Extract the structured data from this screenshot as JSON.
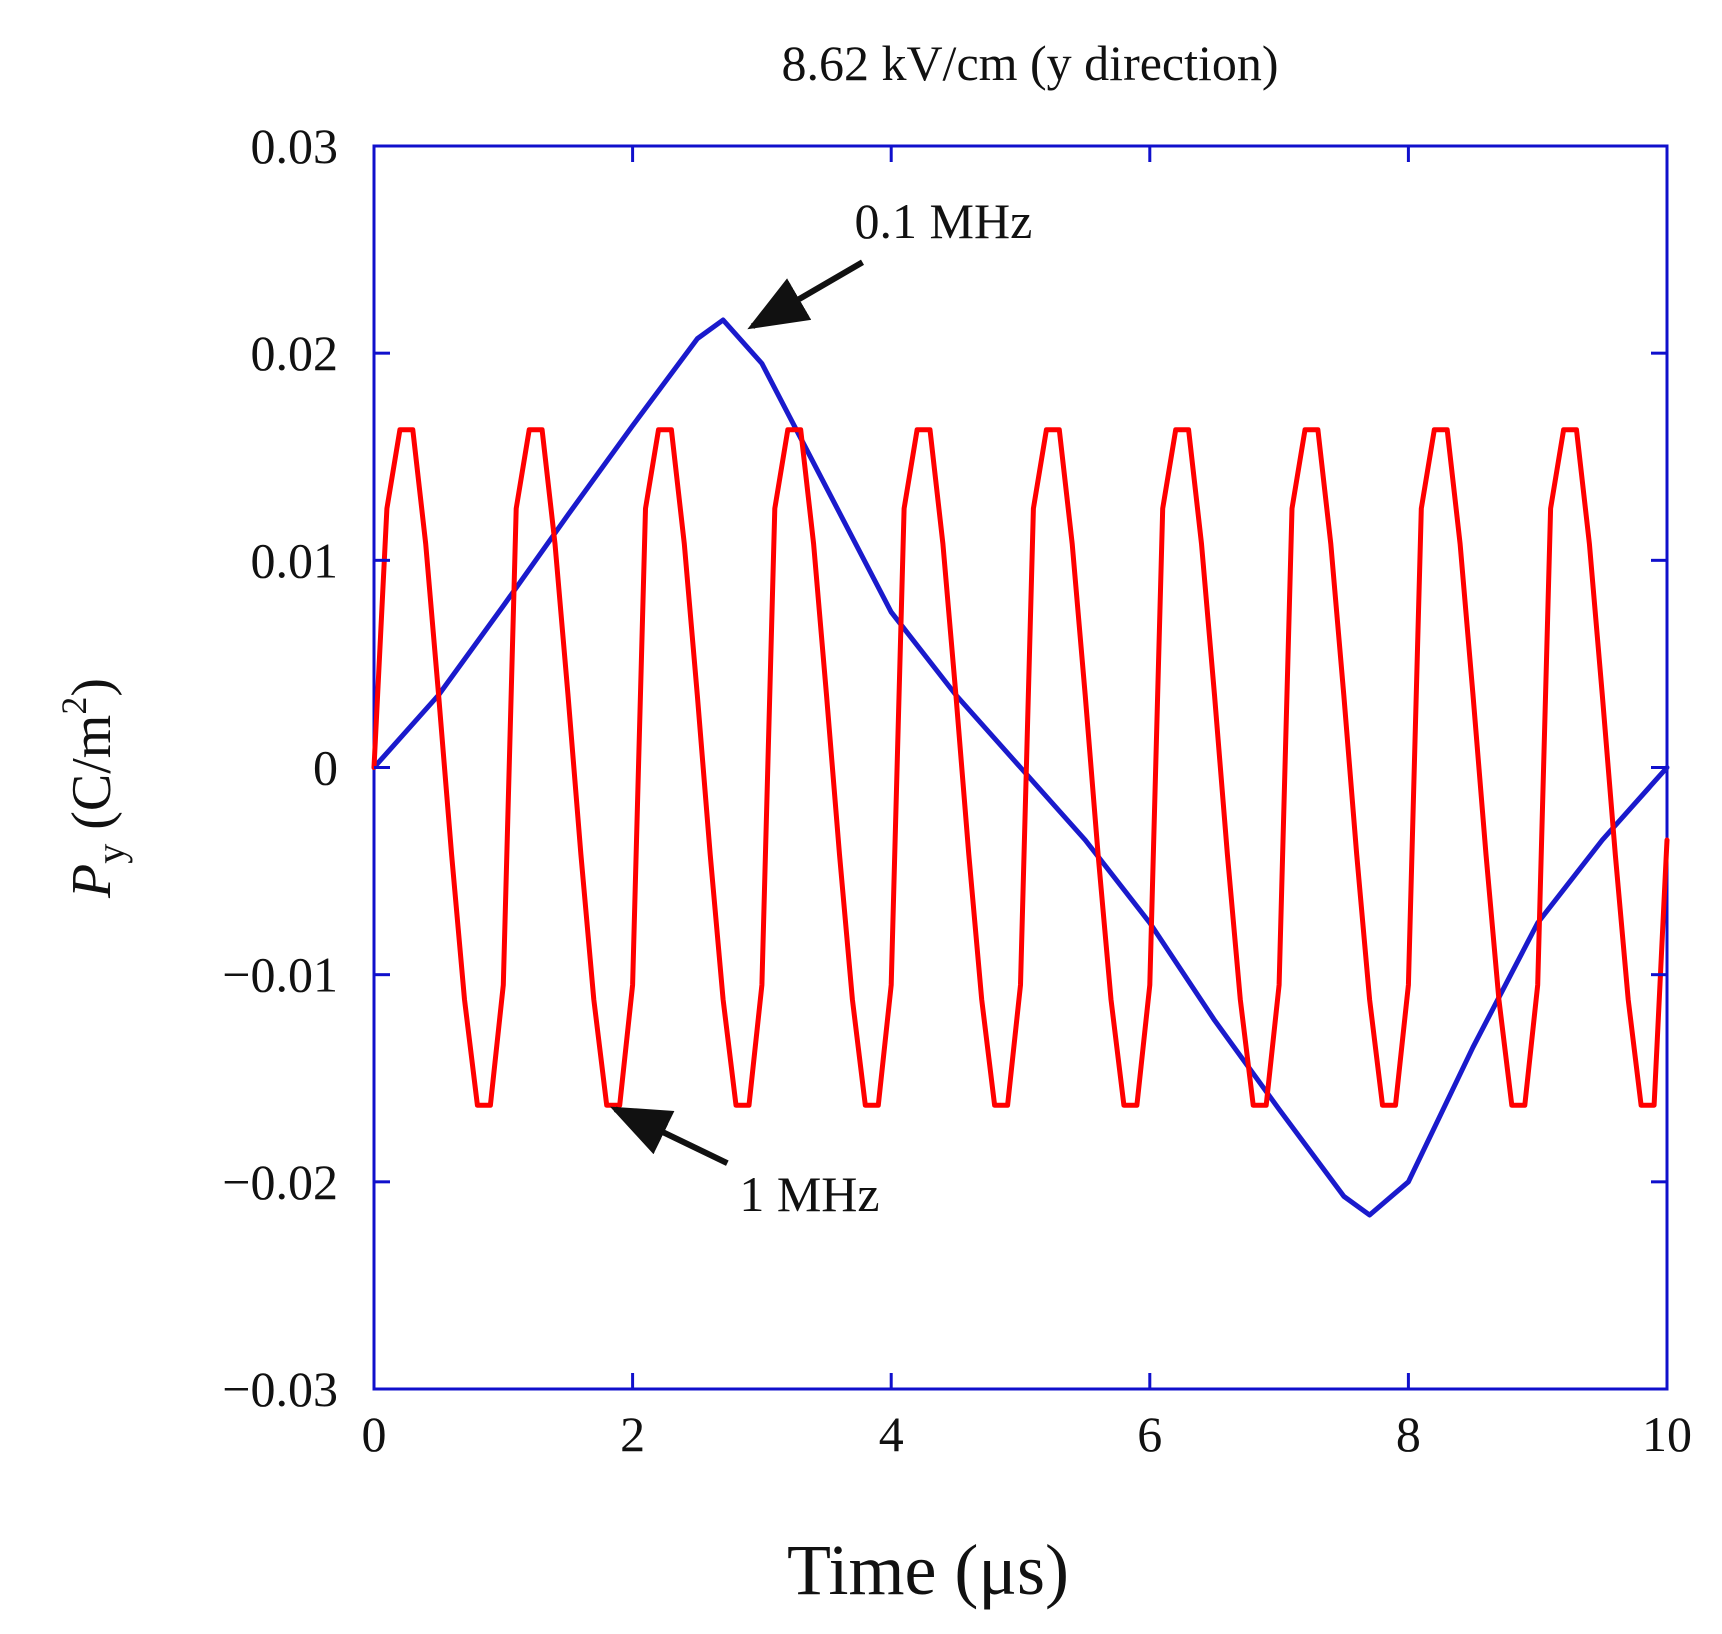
{
  "chart_data": {
    "type": "line",
    "title": "8.62 kV/cm (y direction)",
    "xlabel": "Time (μs)",
    "ylabel": {
      "symbol": "P",
      "subscript": "y",
      "unit_open": " (C/m",
      "unit_sup": "2",
      "unit_close": ")"
    },
    "xlim": [
      0,
      10
    ],
    "ylim": [
      -0.03,
      0.03
    ],
    "xticks": [
      0,
      2,
      4,
      6,
      8,
      10
    ],
    "xtick_labels": [
      "0",
      "2",
      "4",
      "6",
      "8",
      "10"
    ],
    "yticks": [
      -0.03,
      -0.02,
      -0.01,
      0,
      0.01,
      0.02,
      0.03
    ],
    "ytick_labels": [
      "−0.03",
      "−0.02",
      "−0.01",
      "0",
      "0.01",
      "0.02",
      "0.03"
    ],
    "grid": false,
    "axis_color": "#1010cc",
    "series": [
      {
        "name": "1 MHz",
        "color": "#ff0000",
        "frequency_mhz": 1,
        "x": [
          0,
          0.1,
          0.2,
          0.3,
          0.4,
          0.5,
          0.6,
          0.7,
          0.8,
          0.9,
          1.0,
          1.1,
          1.2,
          1.3,
          1.4,
          1.5,
          1.6,
          1.7,
          1.8,
          1.9,
          2.0,
          2.1,
          2.2,
          2.3,
          2.4,
          2.5,
          2.6,
          2.7,
          2.8,
          2.9,
          3.0,
          3.1,
          3.2,
          3.3,
          3.4,
          3.5,
          3.6,
          3.7,
          3.8,
          3.9,
          4.0,
          4.1,
          4.2,
          4.3,
          4.4,
          4.5,
          4.6,
          4.7,
          4.8,
          4.9,
          5.0,
          5.1,
          5.2,
          5.3,
          5.4,
          5.5,
          5.6,
          5.7,
          5.8,
          5.9,
          6.0,
          6.1,
          6.2,
          6.3,
          6.4,
          6.5,
          6.6,
          6.7,
          6.8,
          6.9,
          7.0,
          7.1,
          7.2,
          7.3,
          7.4,
          7.5,
          7.6,
          7.7,
          7.8,
          7.9,
          8.0,
          8.1,
          8.2,
          8.3,
          8.4,
          8.5,
          8.6,
          8.7,
          8.8,
          8.9,
          9.0,
          9.1,
          9.2,
          9.3,
          9.4,
          9.5,
          9.6,
          9.7,
          9.8,
          9.9,
          10.0
        ],
        "y": [
          0,
          0.0125,
          0.0163,
          0.0163,
          0.0108,
          0.0035,
          -0.0042,
          -0.0112,
          -0.0163,
          -0.0163,
          -0.0105,
          0.0125,
          0.0163,
          0.0163,
          0.0108,
          0.0035,
          -0.0042,
          -0.0112,
          -0.0163,
          -0.0163,
          -0.0105,
          0.0125,
          0.0163,
          0.0163,
          0.0108,
          0.0035,
          -0.0042,
          -0.0112,
          -0.0163,
          -0.0163,
          -0.0105,
          0.0125,
          0.0163,
          0.0163,
          0.0108,
          0.0035,
          -0.0042,
          -0.0112,
          -0.0163,
          -0.0163,
          -0.0105,
          0.0125,
          0.0163,
          0.0163,
          0.0108,
          0.0035,
          -0.0042,
          -0.0112,
          -0.0163,
          -0.0163,
          -0.0105,
          0.0125,
          0.0163,
          0.0163,
          0.0108,
          0.0035,
          -0.0042,
          -0.0112,
          -0.0163,
          -0.0163,
          -0.0105,
          0.0125,
          0.0163,
          0.0163,
          0.0108,
          0.0035,
          -0.0042,
          -0.0112,
          -0.0163,
          -0.0163,
          -0.0105,
          0.0125,
          0.0163,
          0.0163,
          0.0108,
          0.0035,
          -0.0042,
          -0.0112,
          -0.0163,
          -0.0163,
          -0.0105,
          0.0125,
          0.0163,
          0.0163,
          0.0108,
          0.0035,
          -0.0042,
          -0.0112,
          -0.0163,
          -0.0163,
          -0.0105,
          0.0125,
          0.0163,
          0.0163,
          0.0108,
          0.0035,
          -0.0042,
          -0.0112,
          -0.0163,
          -0.0163,
          -0.0035
        ]
      },
      {
        "name": "0.1 MHz",
        "color": "#1a1acc",
        "frequency_mhz": 0.1,
        "x": [
          0,
          0.5,
          1.0,
          1.5,
          2.0,
          2.5,
          2.7,
          3.0,
          3.5,
          4.0,
          4.5,
          5.0,
          5.5,
          6.0,
          6.5,
          7.0,
          7.5,
          7.7,
          8.0,
          8.5,
          9.0,
          9.5,
          10.0
        ],
        "y": [
          0,
          0.0035,
          0.0078,
          0.0122,
          0.0165,
          0.0207,
          0.0216,
          0.0195,
          0.0135,
          0.0075,
          0.0035,
          0.0,
          -0.0035,
          -0.0075,
          -0.0122,
          -0.0165,
          -0.0207,
          -0.0216,
          -0.02,
          -0.0135,
          -0.0075,
          -0.0035,
          0.0
        ]
      }
    ],
    "annotations": [
      {
        "text": "0.1 MHz",
        "target": [
          2.85,
          0.0213
        ],
        "series": "0.1 MHz"
      },
      {
        "text": "1 MHz",
        "target": [
          1.82,
          -0.0163
        ],
        "series": "1 MHz"
      }
    ]
  }
}
